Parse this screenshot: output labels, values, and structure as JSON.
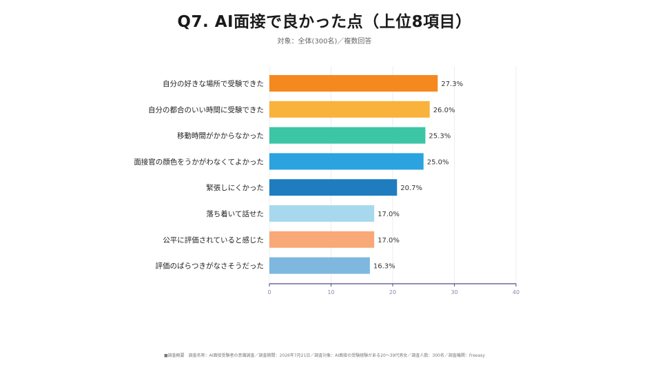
{
  "chart_data": {
    "type": "bar",
    "orientation": "horizontal",
    "title": "Q7. AI面接で良かった点（上位8項目）",
    "subtitle": "対象：全体(300名)／複数回答",
    "categories": [
      "自分の好きな場所で受験できた",
      "自分の都合のいい時間に受験できた",
      "移動時間がかからなかった",
      "面接官の顔色をうかがわなくてよかった",
      "緊張しにくかった",
      "落ち着いて話せた",
      "公平に評価されていると感じた",
      "評価のばらつきがなさそうだった"
    ],
    "values": [
      27.3,
      26.0,
      25.3,
      25.0,
      20.7,
      17.0,
      17.0,
      16.3
    ],
    "value_labels": [
      "27.3%",
      "26.0%",
      "25.3%",
      "25.0%",
      "20.7%",
      "17.0%",
      "17.0%",
      "16.3%"
    ],
    "colors": [
      "#F5891F",
      "#F9B23C",
      "#3CC6A6",
      "#2BA3DF",
      "#1F7DBF",
      "#A8D8EE",
      "#F9A878",
      "#7EB8DE"
    ],
    "xlim": [
      0,
      40
    ],
    "xticks": [
      "0",
      "10",
      "20",
      "30",
      "40"
    ],
    "grid": true
  },
  "footer": "■調査概要　調査名称：AI面接受験者の意識調査／調査期間：2026年7月21日／調査対象：AI面接の受験経験がある20～39代男女／調査人数：300名／調査機関：Freeasy"
}
